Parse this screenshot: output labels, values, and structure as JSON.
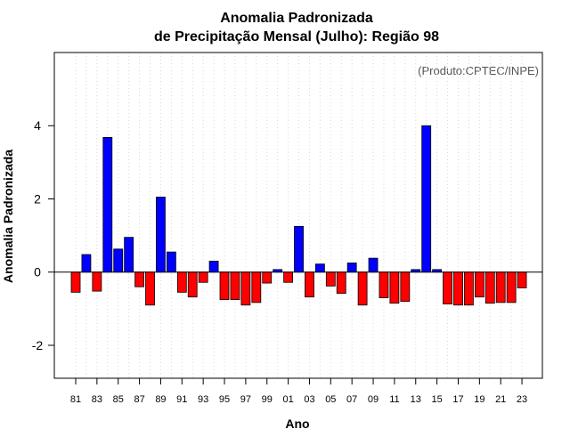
{
  "chart_data": {
    "type": "bar",
    "title": "Anomalia Padronizada",
    "subtitle": "de Precipitação Mensal (Julho): Região 98",
    "xlabel": "Ano",
    "ylabel": "Anomalia Padronizada",
    "annotation": "(Produto:CPTEC/INPE)",
    "ylim": [
      -2.9,
      6.0
    ],
    "yticks": [
      -2,
      0,
      2,
      4
    ],
    "grid": "vertical-dotted",
    "colors": {
      "positive": "#0000ff",
      "negative": "#ff0000",
      "annotation": "#555555"
    },
    "categories": [
      "81",
      "82",
      "83",
      "84",
      "85",
      "86",
      "87",
      "88",
      "89",
      "90",
      "91",
      "92",
      "93",
      "94",
      "95",
      "96",
      "97",
      "98",
      "99",
      "00",
      "01",
      "02",
      "03",
      "04",
      "05",
      "06",
      "07",
      "08",
      "09",
      "10",
      "11",
      "12",
      "13",
      "14",
      "15",
      "16",
      "17",
      "18",
      "19",
      "20",
      "21",
      "22",
      "23"
    ],
    "xtick_labels": [
      "81",
      "83",
      "85",
      "87",
      "89",
      "91",
      "93",
      "95",
      "97",
      "99",
      "01",
      "03",
      "05",
      "07",
      "09",
      "11",
      "13",
      "15",
      "17",
      "19",
      "21",
      "23"
    ],
    "values": [
      -0.55,
      0.48,
      -0.52,
      3.68,
      0.63,
      0.95,
      -0.4,
      -0.9,
      2.05,
      0.55,
      -0.55,
      -0.68,
      -0.28,
      0.3,
      -0.75,
      -0.75,
      -0.9,
      -0.83,
      -0.3,
      0.07,
      -0.28,
      1.25,
      -0.68,
      0.22,
      -0.38,
      -0.58,
      0.25,
      -0.9,
      0.38,
      -0.7,
      -0.85,
      -0.8,
      0.07,
      4.0,
      0.07,
      -0.87,
      -0.9,
      -0.9,
      -0.68,
      -0.85,
      -0.83,
      -0.83,
      -0.43
    ]
  }
}
